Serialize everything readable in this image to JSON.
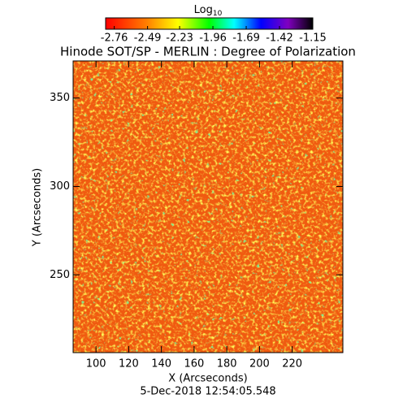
{
  "chart_data": {
    "type": "heatmap",
    "title": "Hinode SOT/SP - MERLIN : Degree of Polarization",
    "x_label": "X (Arcseconds)",
    "y_label": "Y (Arcseconds)",
    "xlim": [
      86,
      251
    ],
    "xticks": [
      100,
      120,
      140,
      160,
      180,
      200,
      220
    ],
    "ylim": [
      206,
      371
    ],
    "yticks": [
      250,
      300,
      350
    ],
    "colorbar": {
      "label": "Log",
      "label_sub": "10",
      "lim": [
        -2.83,
        -1.15
      ],
      "ticks": [
        -2.76,
        -2.49,
        -2.23,
        -1.96,
        -1.69,
        -1.42,
        -1.15
      ]
    },
    "timestamp": "5-Dec-2018 12:54:05.548"
  }
}
